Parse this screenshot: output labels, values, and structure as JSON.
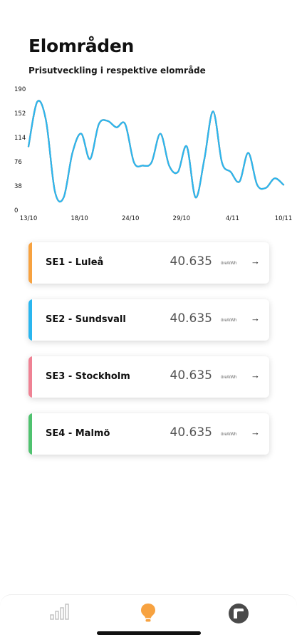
{
  "header": {
    "title": "Elområden",
    "subtitle": "Prisutveckling i respektive elområde"
  },
  "chart_data": {
    "type": "line",
    "y_ticks": [
      "190",
      "152",
      "114",
      "76",
      "38",
      "0"
    ],
    "x_ticks": [
      "13/10",
      "18/10",
      "24/10",
      "29/10",
      "4/11",
      "10/11"
    ],
    "ylim": [
      0,
      190
    ],
    "x": [
      0,
      1,
      2,
      3,
      4,
      5,
      6,
      7,
      8,
      9,
      10,
      11,
      12,
      13,
      14,
      15,
      16,
      17,
      18,
      19,
      20,
      21,
      22,
      23,
      24,
      25,
      26,
      27,
      28,
      29
    ],
    "series": [
      {
        "color": "#4fc26f",
        "values": [
          100,
          170,
          140,
          30,
          20,
          90,
          120,
          80,
          135,
          140,
          130,
          135,
          75,
          70,
          75,
          120,
          70,
          60,
          100,
          20,
          80,
          155,
          75,
          60,
          45,
          90,
          40,
          35,
          50,
          40
        ]
      },
      {
        "color": "#f7a240",
        "values": [
          100,
          170,
          140,
          30,
          20,
          90,
          120,
          80,
          135,
          140,
          130,
          135,
          75,
          70,
          75,
          120,
          70,
          60,
          100,
          20,
          80,
          155,
          75,
          60,
          45,
          90,
          40,
          35,
          50,
          40
        ]
      },
      {
        "color": "#ef8294",
        "values": [
          100,
          170,
          140,
          30,
          20,
          90,
          120,
          80,
          135,
          140,
          130,
          135,
          75,
          70,
          75,
          120,
          70,
          60,
          100,
          20,
          80,
          155,
          75,
          60,
          45,
          90,
          40,
          35,
          50,
          40
        ]
      },
      {
        "color": "#2ab6ef",
        "values": [
          100,
          170,
          140,
          30,
          20,
          90,
          120,
          80,
          135,
          140,
          130,
          135,
          75,
          70,
          75,
          120,
          70,
          60,
          100,
          20,
          80,
          155,
          75,
          60,
          45,
          90,
          40,
          35,
          50,
          40
        ]
      }
    ]
  },
  "areas": [
    {
      "name": "SE1 - Luleå",
      "price": "40.635",
      "unit": "öre/kWh",
      "color": "#f7a240"
    },
    {
      "name": "SE2 - Sundsvall",
      "price": "40.635",
      "unit": "öre/kWh",
      "color": "#2ab6ef"
    },
    {
      "name": "SE3 - Stockholm",
      "price": "40.635",
      "unit": "öre/kWh",
      "color": "#ef8294"
    },
    {
      "name": "SE4 - Malmö",
      "price": "40.635",
      "unit": "öre/kWh",
      "color": "#4fc26f"
    }
  ],
  "tabbar": {
    "tabs": [
      {
        "icon": "bar-chart-icon",
        "active": false
      },
      {
        "icon": "lightbulb-icon",
        "active": true,
        "color": "#f7a240"
      },
      {
        "icon": "account-icon",
        "active": false
      }
    ]
  }
}
